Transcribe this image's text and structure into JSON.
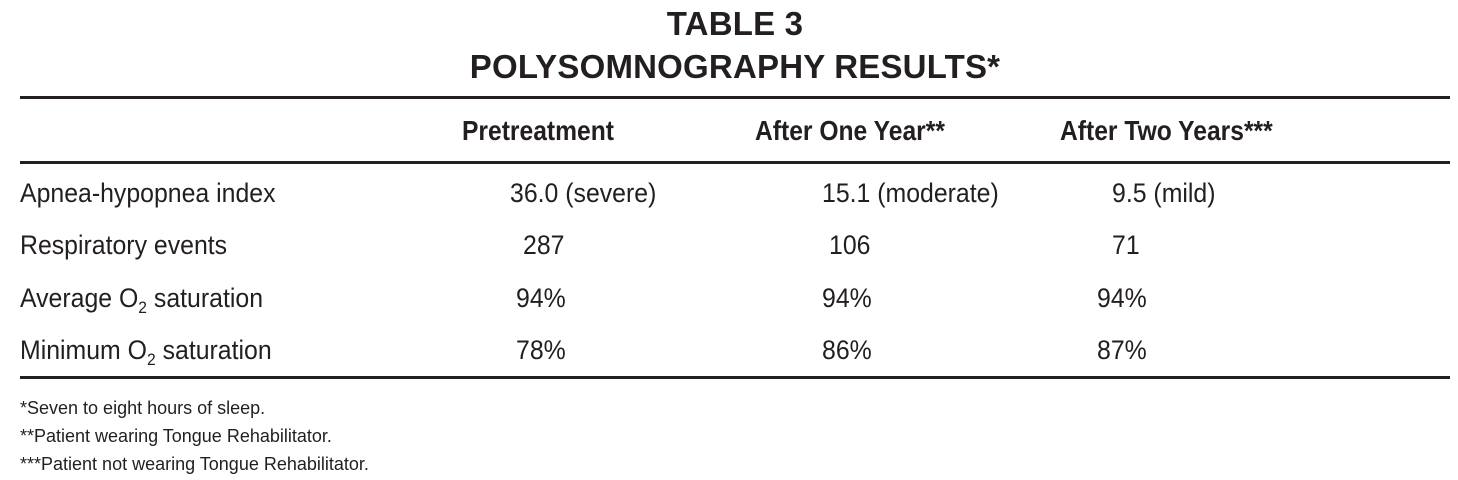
{
  "table": {
    "title_line_1": "TABLE 3",
    "title_line_2": "POLYSOMNOGRAPHY RESULTS*",
    "columns": [
      "Pretreatment",
      "After One Year**",
      "After Two Years***"
    ],
    "rows": [
      {
        "label_prefix": "Apnea-hypopnea index",
        "label_subscript": "",
        "label_suffix": "",
        "values": [
          "36.0 (severe)",
          "15.1 (moderate)",
          "9.5 (mild)"
        ]
      },
      {
        "label_prefix": "Respiratory events",
        "label_subscript": "",
        "label_suffix": "",
        "values": [
          "287",
          "106",
          "71"
        ]
      },
      {
        "label_prefix": "Average O",
        "label_subscript": "2",
        "label_suffix": " saturation",
        "values": [
          "94%",
          "94%",
          "94%"
        ]
      },
      {
        "label_prefix": "Minimum O",
        "label_subscript": "2",
        "label_suffix": " saturation",
        "values": [
          "78%",
          "86%",
          "87%"
        ]
      }
    ],
    "footnotes": [
      "*Seven to eight hours of sleep.",
      "**Patient wearing Tongue Rehabilitator.",
      "***Patient not wearing Tongue Rehabilitator."
    ]
  }
}
